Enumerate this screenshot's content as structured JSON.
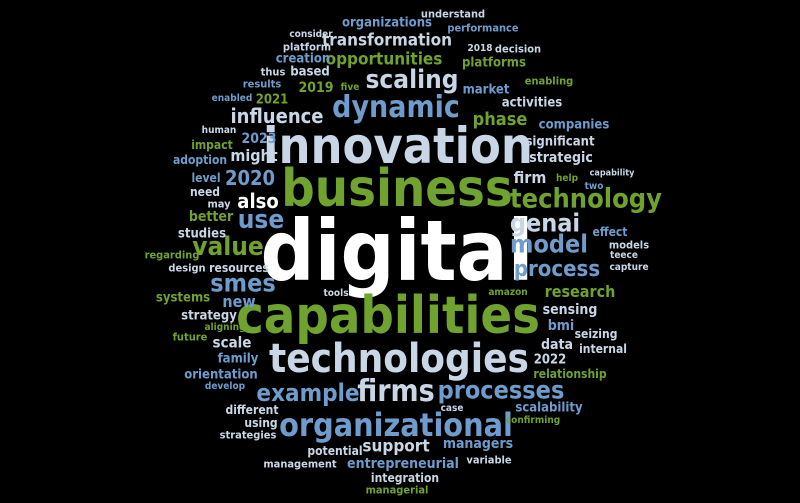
{
  "palette": {
    "background": "#000000",
    "white": "#ffffff",
    "light": "#c8d6e5",
    "blue": "#6e9ccc",
    "green": "#6fa22e",
    "gray": "#b9c2cc"
  },
  "words": [
    {
      "text": "digital",
      "color": "white"
    },
    {
      "text": "business",
      "color": "green"
    },
    {
      "text": "innovation",
      "color": "light"
    },
    {
      "text": "capabilities",
      "color": "green"
    },
    {
      "text": "technologies",
      "color": "light"
    },
    {
      "text": "organizational",
      "color": "blue"
    },
    {
      "text": "dynamic",
      "color": "blue"
    },
    {
      "text": "scaling",
      "color": "light"
    },
    {
      "text": "technology",
      "color": "green"
    },
    {
      "text": "firms",
      "color": "light"
    },
    {
      "text": "model",
      "color": "blue"
    },
    {
      "text": "process",
      "color": "blue"
    },
    {
      "text": "genai",
      "color": "light"
    },
    {
      "text": "processes",
      "color": "blue"
    },
    {
      "text": "example",
      "color": "blue"
    },
    {
      "text": "value",
      "color": "green"
    },
    {
      "text": "use",
      "color": "blue"
    },
    {
      "text": "smes",
      "color": "blue"
    },
    {
      "text": "also",
      "color": "white"
    },
    {
      "text": "2020",
      "color": "blue"
    },
    {
      "text": "influence",
      "color": "light"
    },
    {
      "text": "transformation",
      "color": "light"
    },
    {
      "text": "opportunities",
      "color": "green"
    },
    {
      "text": "phase",
      "color": "green"
    },
    {
      "text": "research",
      "color": "green"
    },
    {
      "text": "support",
      "color": "light"
    },
    {
      "text": "entrepreneurial",
      "color": "blue"
    },
    {
      "text": "managers",
      "color": "blue"
    },
    {
      "text": "firm",
      "color": "light"
    },
    {
      "text": "strategic",
      "color": "light"
    },
    {
      "text": "might",
      "color": "light"
    },
    {
      "text": "market",
      "color": "blue"
    },
    {
      "text": "significant",
      "color": "light"
    },
    {
      "text": "companies",
      "color": "blue"
    },
    {
      "text": "activities",
      "color": "light"
    },
    {
      "text": "organizations",
      "color": "blue"
    },
    {
      "text": "understand",
      "color": "light"
    },
    {
      "text": "performance",
      "color": "blue"
    },
    {
      "text": "consider",
      "color": "light"
    },
    {
      "text": "platform",
      "color": "light"
    },
    {
      "text": "creation",
      "color": "blue"
    },
    {
      "text": "platforms",
      "color": "green"
    },
    {
      "text": "2018",
      "color": "light"
    },
    {
      "text": "decision",
      "color": "light"
    },
    {
      "text": "thus",
      "color": "light"
    },
    {
      "text": "based",
      "color": "light"
    },
    {
      "text": "results",
      "color": "blue"
    },
    {
      "text": "2019",
      "color": "green"
    },
    {
      "text": "five",
      "color": "green"
    },
    {
      "text": "enabling",
      "color": "green"
    },
    {
      "text": "enabled",
      "color": "blue"
    },
    {
      "text": "2021",
      "color": "green"
    },
    {
      "text": "human",
      "color": "light"
    },
    {
      "text": "2023",
      "color": "blue"
    },
    {
      "text": "impact",
      "color": "green"
    },
    {
      "text": "adoption",
      "color": "blue"
    },
    {
      "text": "level",
      "color": "blue"
    },
    {
      "text": "need",
      "color": "light"
    },
    {
      "text": "may",
      "color": "light"
    },
    {
      "text": "better",
      "color": "green"
    },
    {
      "text": "studies",
      "color": "light"
    },
    {
      "text": "regarding",
      "color": "green"
    },
    {
      "text": "design",
      "color": "light"
    },
    {
      "text": "resources",
      "color": "light"
    },
    {
      "text": "systems",
      "color": "green"
    },
    {
      "text": "new",
      "color": "blue"
    },
    {
      "text": "strategy",
      "color": "light"
    },
    {
      "text": "aligning",
      "color": "green"
    },
    {
      "text": "future",
      "color": "green"
    },
    {
      "text": "scale",
      "color": "light"
    },
    {
      "text": "family",
      "color": "blue"
    },
    {
      "text": "orientation",
      "color": "blue"
    },
    {
      "text": "develop",
      "color": "blue"
    },
    {
      "text": "different",
      "color": "light"
    },
    {
      "text": "using",
      "color": "light"
    },
    {
      "text": "strategies",
      "color": "light"
    },
    {
      "text": "potential",
      "color": "light"
    },
    {
      "text": "management",
      "color": "light"
    },
    {
      "text": "integration",
      "color": "light"
    },
    {
      "text": "managerial",
      "color": "green"
    },
    {
      "text": "variable",
      "color": "light"
    },
    {
      "text": "case",
      "color": "light"
    },
    {
      "text": "confirming",
      "color": "green"
    },
    {
      "text": "scalability",
      "color": "blue"
    },
    {
      "text": "relationship",
      "color": "green"
    },
    {
      "text": "2022",
      "color": "light"
    },
    {
      "text": "internal",
      "color": "light"
    },
    {
      "text": "data",
      "color": "light"
    },
    {
      "text": "seizing",
      "color": "light"
    },
    {
      "text": "bmi",
      "color": "blue"
    },
    {
      "text": "sensing",
      "color": "light"
    },
    {
      "text": "amazon",
      "color": "green"
    },
    {
      "text": "tools",
      "color": "light"
    },
    {
      "text": "capture",
      "color": "light"
    },
    {
      "text": "teece",
      "color": "light"
    },
    {
      "text": "models",
      "color": "light"
    },
    {
      "text": "effect",
      "color": "blue"
    },
    {
      "text": "two",
      "color": "blue"
    },
    {
      "text": "help",
      "color": "green"
    },
    {
      "text": "capability",
      "color": "light"
    }
  ]
}
